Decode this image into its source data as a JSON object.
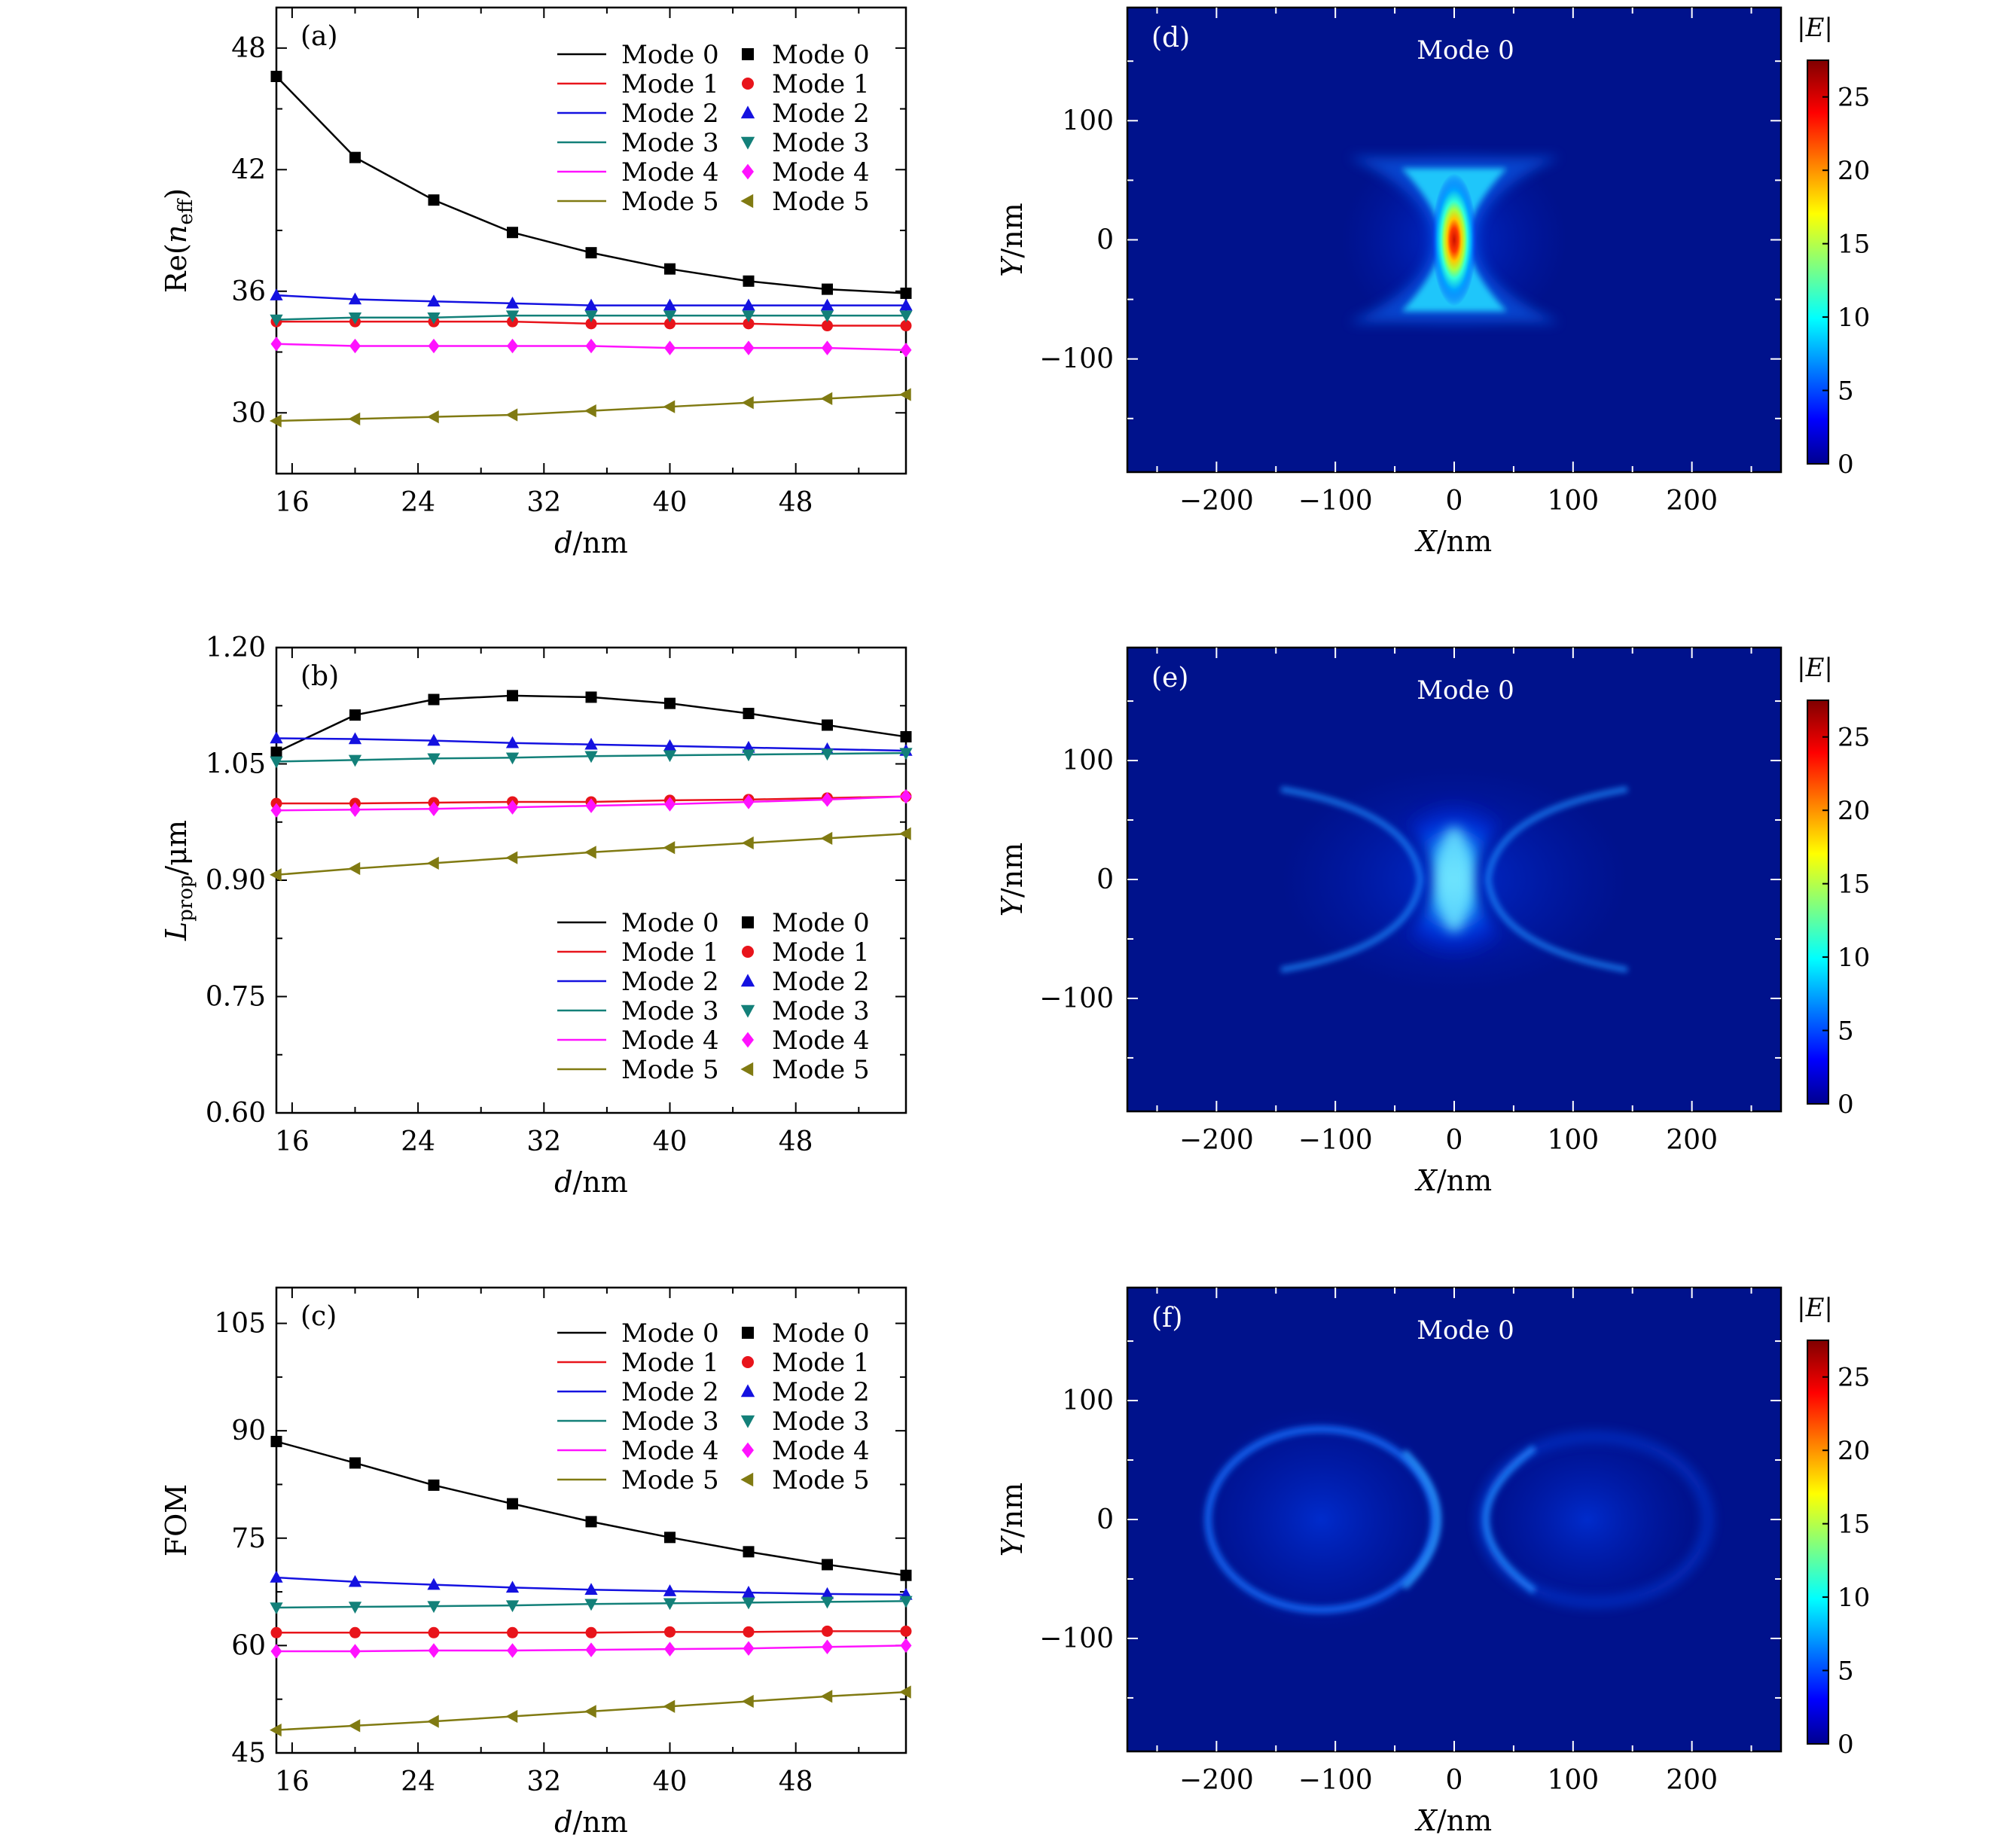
{
  "figure": {
    "mode_names": [
      "Mode 0",
      "Mode 1",
      "Mode 2",
      "Mode 3",
      "Mode 4",
      "Mode 5"
    ],
    "colors": {
      "mode0": "#000000",
      "mode1": "#e8141b",
      "mode2": "#1411e0",
      "mode3": "#138079",
      "mode4": "#ff12ff",
      "mode5": "#807a12",
      "map_bg": "#00128c"
    }
  },
  "chart_data": [
    {
      "type": "line",
      "panel_label": "(a)",
      "xlabel": "d/nm",
      "ylabel": "Re(n_eff)",
      "x": [
        15,
        20,
        25,
        30,
        35,
        40,
        45,
        50,
        55
      ],
      "xlim": [
        15,
        55
      ],
      "ylim": [
        27,
        50
      ],
      "xticks": [
        16,
        24,
        32,
        40,
        48
      ],
      "yticks": [
        30,
        36,
        42,
        48
      ],
      "legend": "top-right",
      "series": [
        {
          "name": "Mode 0",
          "marker": "square",
          "values": [
            46.6,
            42.6,
            40.5,
            38.9,
            37.9,
            37.1,
            36.5,
            36.1,
            35.9
          ]
        },
        {
          "name": "Mode 1",
          "marker": "circle",
          "values": [
            34.5,
            34.5,
            34.5,
            34.5,
            34.4,
            34.4,
            34.4,
            34.3,
            34.3
          ]
        },
        {
          "name": "Mode 2",
          "marker": "triangle-up",
          "values": [
            35.8,
            35.6,
            35.5,
            35.4,
            35.3,
            35.3,
            35.3,
            35.3,
            35.3
          ]
        },
        {
          "name": "Mode 3",
          "marker": "triangle-down",
          "values": [
            34.6,
            34.7,
            34.7,
            34.8,
            34.8,
            34.8,
            34.8,
            34.8,
            34.8
          ]
        },
        {
          "name": "Mode 4",
          "marker": "diamond",
          "values": [
            33.4,
            33.3,
            33.3,
            33.3,
            33.3,
            33.2,
            33.2,
            33.2,
            33.1
          ]
        },
        {
          "name": "Mode 5",
          "marker": "triangle-left",
          "values": [
            29.6,
            29.7,
            29.8,
            29.9,
            30.1,
            30.3,
            30.5,
            30.7,
            30.9
          ]
        }
      ]
    },
    {
      "type": "line",
      "panel_label": "(b)",
      "xlabel": "d/nm",
      "ylabel": "L_prop/μm",
      "x": [
        15,
        20,
        25,
        30,
        35,
        40,
        45,
        50,
        55
      ],
      "xlim": [
        15,
        55
      ],
      "ylim": [
        0.6,
        1.2
      ],
      "xticks": [
        16,
        24,
        32,
        40,
        48
      ],
      "yticks": [
        "0.60",
        "0.75",
        "0.90",
        "1.05",
        "1.20"
      ],
      "legend": "bottom-right",
      "series": [
        {
          "name": "Mode 0",
          "marker": "square",
          "values": [
            1.065,
            1.113,
            1.133,
            1.138,
            1.136,
            1.128,
            1.115,
            1.1,
            1.085
          ]
        },
        {
          "name": "Mode 1",
          "marker": "circle",
          "values": [
            0.999,
            0.999,
            1.0,
            1.001,
            1.001,
            1.003,
            1.004,
            1.006,
            1.008
          ]
        },
        {
          "name": "Mode 2",
          "marker": "triangle-up",
          "values": [
            1.083,
            1.082,
            1.08,
            1.077,
            1.075,
            1.073,
            1.071,
            1.069,
            1.067
          ]
        },
        {
          "name": "Mode 3",
          "marker": "triangle-down",
          "values": [
            1.053,
            1.055,
            1.057,
            1.058,
            1.06,
            1.061,
            1.062,
            1.063,
            1.064
          ]
        },
        {
          "name": "Mode 4",
          "marker": "diamond",
          "values": [
            0.99,
            0.991,
            0.992,
            0.994,
            0.996,
            0.998,
            1.001,
            1.004,
            1.008
          ]
        },
        {
          "name": "Mode 5",
          "marker": "triangle-left",
          "values": [
            0.907,
            0.915,
            0.922,
            0.929,
            0.936,
            0.942,
            0.948,
            0.954,
            0.96
          ]
        }
      ]
    },
    {
      "type": "line",
      "panel_label": "(c)",
      "xlabel": "d/nm",
      "ylabel": "FOM",
      "x": [
        15,
        20,
        25,
        30,
        35,
        40,
        45,
        50,
        55
      ],
      "xlim": [
        15,
        55
      ],
      "ylim": [
        45,
        110
      ],
      "xticks": [
        16,
        24,
        32,
        40,
        48
      ],
      "yticks": [
        45,
        60,
        75,
        90,
        105
      ],
      "legend": "top-right",
      "series": [
        {
          "name": "Mode 0",
          "marker": "square",
          "values": [
            88.5,
            85.5,
            82.4,
            79.8,
            77.3,
            75.1,
            73.1,
            71.3,
            69.8
          ]
        },
        {
          "name": "Mode 1",
          "marker": "circle",
          "values": [
            61.8,
            61.8,
            61.8,
            61.8,
            61.8,
            61.9,
            61.9,
            62.0,
            62.0
          ]
        },
        {
          "name": "Mode 2",
          "marker": "triangle-up",
          "values": [
            69.5,
            68.9,
            68.5,
            68.1,
            67.8,
            67.6,
            67.4,
            67.2,
            67.1
          ]
        },
        {
          "name": "Mode 3",
          "marker": "triangle-down",
          "values": [
            65.3,
            65.4,
            65.5,
            65.6,
            65.8,
            65.9,
            66.0,
            66.1,
            66.2
          ]
        },
        {
          "name": "Mode 4",
          "marker": "diamond",
          "values": [
            59.2,
            59.2,
            59.3,
            59.3,
            59.4,
            59.5,
            59.6,
            59.8,
            60.0
          ]
        },
        {
          "name": "Mode 5",
          "marker": "triangle-left",
          "values": [
            48.2,
            48.8,
            49.4,
            50.1,
            50.8,
            51.5,
            52.2,
            52.9,
            53.5
          ]
        }
      ]
    },
    {
      "type": "heatmap",
      "panel_label": "(d)",
      "title": "Mode 0",
      "xlabel": "X/nm",
      "ylabel": "Y/nm",
      "xlim": [
        -275,
        275
      ],
      "ylim": [
        -195,
        195
      ],
      "xticks": [
        "−200",
        "−100",
        "0",
        "100",
        "200"
      ],
      "yticks": [
        "100",
        "0",
        "−100"
      ],
      "colorbar_label": "|E|",
      "colorbar_range": [
        0,
        27.5
      ],
      "colorbar_ticks": [
        0,
        5,
        10,
        15,
        20,
        25
      ],
      "colormap": "jet",
      "field_pattern": "hourglass concentrated in a narrow gap at the center, peak ≈ 27"
    },
    {
      "type": "heatmap",
      "panel_label": "(e)",
      "title": "Mode 0",
      "xlabel": "X/nm",
      "ylabel": "Y/nm",
      "xlim": [
        -275,
        275
      ],
      "ylim": [
        -195,
        195
      ],
      "xticks": [
        "−200",
        "−100",
        "0",
        "100",
        "200"
      ],
      "yticks": [
        "100",
        "0",
        "−100"
      ],
      "colorbar_label": "|E|",
      "colorbar_range": [
        0,
        27.5
      ],
      "colorbar_ticks": [
        0,
        5,
        10,
        15,
        20,
        25
      ],
      "colormap": "jet",
      "field_pattern": "wider hourglass with arc-shaped edges around the gap, peak ≈ 7"
    },
    {
      "type": "heatmap",
      "panel_label": "(f)",
      "title": "Mode 0",
      "xlabel": "X/nm",
      "ylabel": "Y/nm",
      "xlim": [
        -275,
        275
      ],
      "ylim": [
        -195,
        195
      ],
      "xticks": [
        "−200",
        "−100",
        "0",
        "100",
        "200"
      ],
      "yticks": [
        "100",
        "0",
        "−100"
      ],
      "colorbar_label": "|E|",
      "colorbar_range": [
        0,
        27.5
      ],
      "colorbar_ticks": [
        0,
        5,
        10,
        15,
        20,
        25
      ],
      "colormap": "jet",
      "field_pattern": "two ring-shaped field distributions on the left and right of the gap, peak ≈ 5"
    }
  ]
}
